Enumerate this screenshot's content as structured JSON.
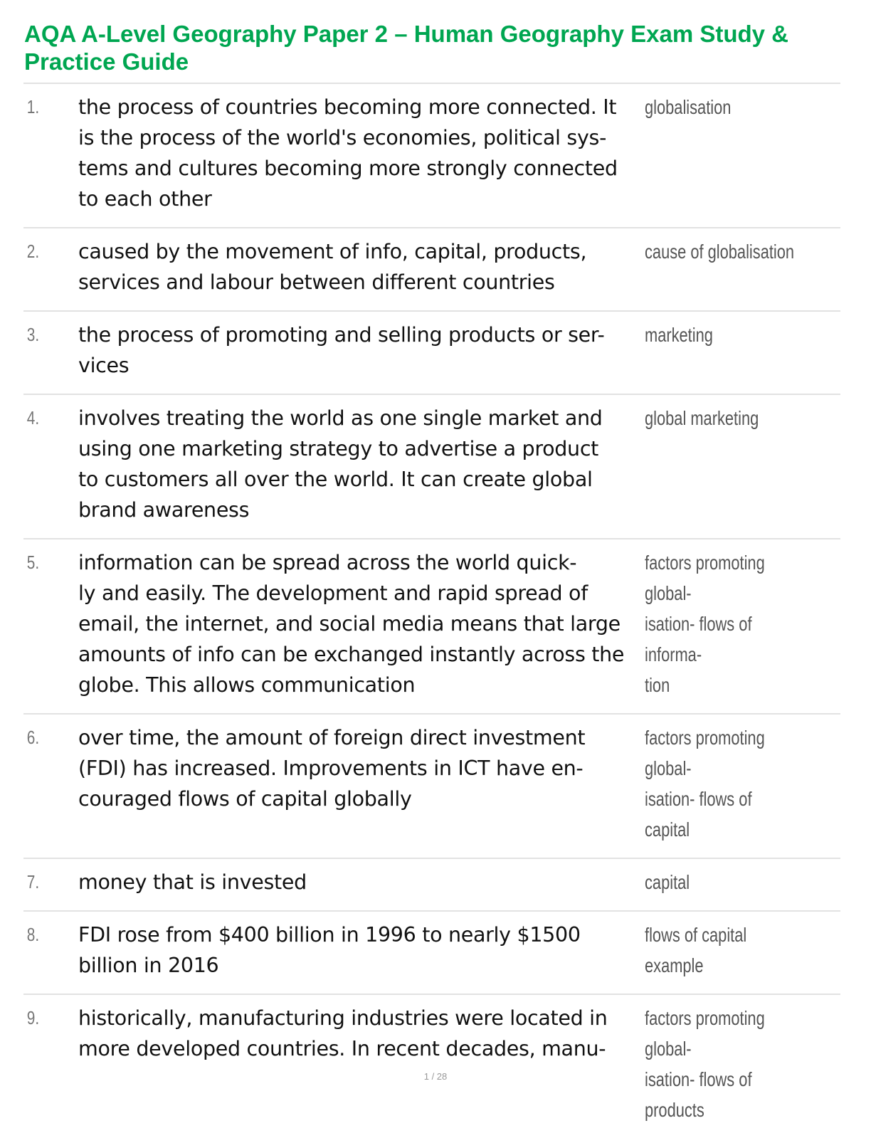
{
  "title": "AQA A-Level Geography Paper 2 – Human Geography Exam Study & Practice Guide",
  "accent_color": "#00a651",
  "items": [
    {
      "num": "1.",
      "definition": "the process of countries becoming more connected. It\nis the process of the world's economies, political sys-\ntems and cultures becoming more strongly connected\nto each other",
      "term": "globalisation"
    },
    {
      "num": "2.",
      "definition": "caused by the movement of info, capital, products,\nservices and labour between different countries",
      "term": "cause of globalisation"
    },
    {
      "num": "3.",
      "definition": "the process of promoting and selling products or ser-\nvices",
      "term": "marketing"
    },
    {
      "num": "4.",
      "definition": "involves treating the world as one single market and\nusing one marketing strategy to advertise a product\nto customers all over the world. It can create global\nbrand awareness",
      "term": "global marketing"
    },
    {
      "num": "5.",
      "definition": "information can be spread across the world quick-\nly and easily. The development and rapid spread of\nemail, the internet, and social media means that large\namounts of info can be exchanged instantly across the\nglobe. This allows communication",
      "term": "factors promoting global-\nisation- flows of informa-\ntion"
    },
    {
      "num": "6.",
      "definition": "over time, the amount of foreign direct investment\n(FDI) has increased. Improvements in ICT have en-\ncouraged flows of capital globally",
      "term": "factors promoting global-\nisation- flows of capital"
    },
    {
      "num": "7.",
      "definition": "money that is invested",
      "term": "capital"
    },
    {
      "num": "8.",
      "definition": "FDI rose from $400 billion in 1996 to nearly $1500\nbillion in 2016",
      "term": "flows of capital example"
    },
    {
      "num": "9.",
      "definition": "historically, manufacturing industries were located in\nmore developed countries. In recent decades, manu-",
      "term": "factors promoting global-\nisation- flows of products"
    }
  ],
  "footer": {
    "page": "1 / 28"
  }
}
